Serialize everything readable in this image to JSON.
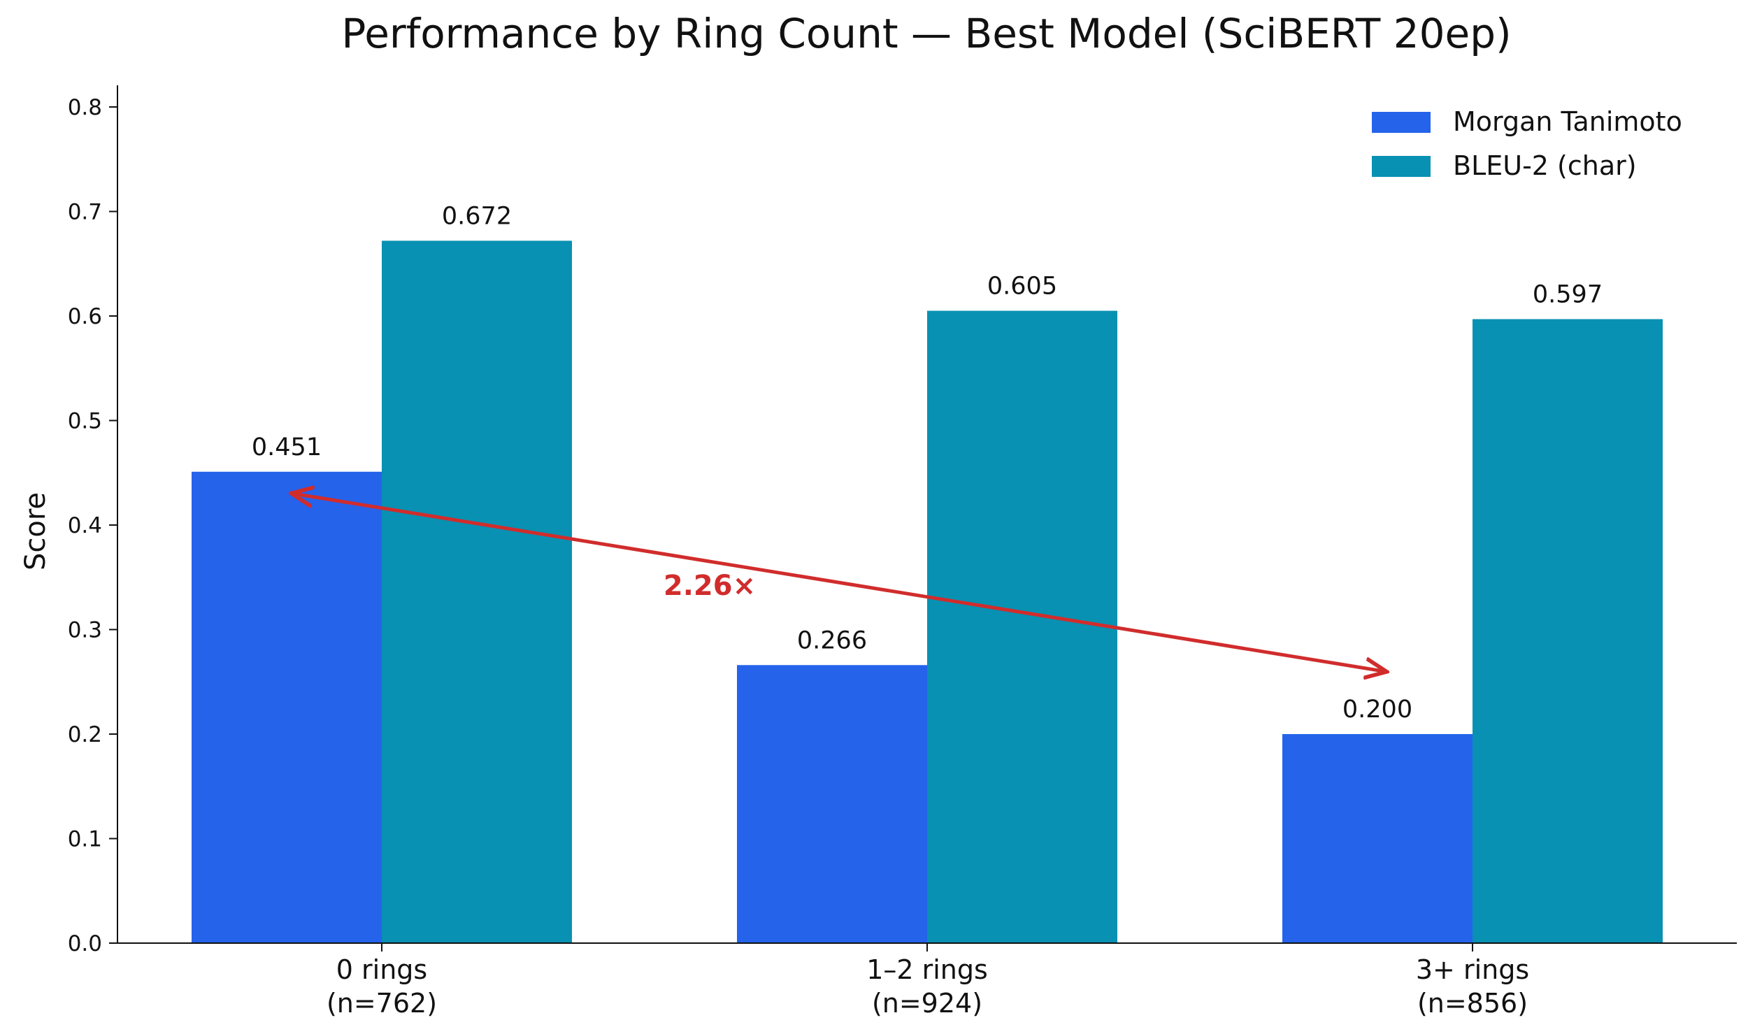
{
  "chart_data": {
    "type": "bar",
    "title": "Performance by Ring Count — Best Model (SciBERT 20ep)",
    "xlabel": "",
    "ylabel": "Score",
    "ylim": [
      0,
      0.82
    ],
    "yticks": [
      0.0,
      0.1,
      0.2,
      0.3,
      0.4,
      0.5,
      0.6,
      0.7,
      0.8
    ],
    "ytick_labels": [
      "0.0",
      "0.1",
      "0.2",
      "0.3",
      "0.4",
      "0.5",
      "0.6",
      "0.7",
      "0.8"
    ],
    "categories": [
      {
        "line1": "0 rings",
        "line2": "(n=762)"
      },
      {
        "line1": "1–2 rings",
        "line2": "(n=924)"
      },
      {
        "line1": "3+ rings",
        "line2": "(n=856)"
      }
    ],
    "series": [
      {
        "name": "Morgan Tanimoto",
        "color": "#2563eb",
        "values": [
          0.451,
          0.266,
          0.2
        ],
        "labels": [
          "0.451",
          "0.266",
          "0.200"
        ]
      },
      {
        "name": "BLEU-2 (char)",
        "color": "#0891b2",
        "values": [
          0.672,
          0.605,
          0.597
        ],
        "labels": [
          "0.672",
          "0.605",
          "0.597"
        ]
      }
    ],
    "legend_position": "top-right",
    "grid": false,
    "annotation": {
      "text": "2.26×",
      "color": "#d12c2c",
      "from": {
        "category": 0,
        "y": 0.43
      },
      "to": {
        "category": 2,
        "y": 0.26
      }
    }
  }
}
